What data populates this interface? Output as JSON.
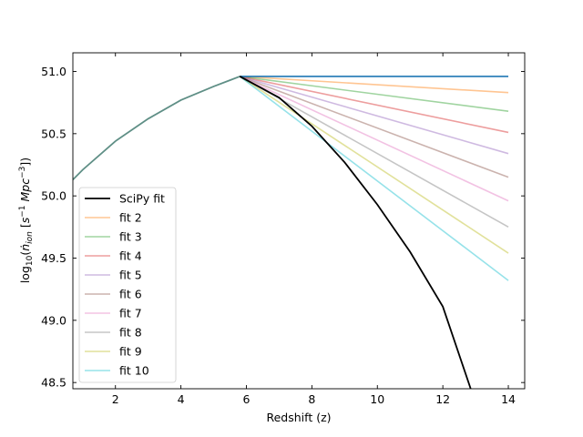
{
  "chart_data": {
    "type": "line",
    "title": "",
    "xlabel": "Redshift (z)",
    "ylabel": {
      "prefix": "log",
      "sub": "10",
      "open": "(",
      "ndot": "ṅ",
      "ion": "ion",
      "bracket_open": " [",
      "s": "s",
      "sexp": "−1",
      "mpc": " Mpc",
      "mexp": "−3",
      "close": "])"
    },
    "xlim": [
      0.7,
      14.5
    ],
    "ylim": [
      48.45,
      51.15
    ],
    "xticks": [
      2,
      4,
      6,
      8,
      10,
      12,
      14
    ],
    "xtick_labels": [
      "2",
      "4",
      "6",
      "8",
      "10",
      "12",
      "14"
    ],
    "yticks": [
      48.5,
      49.0,
      49.5,
      50.0,
      50.5,
      51.0
    ],
    "ytick_labels": [
      "48.5",
      "49.0",
      "49.5",
      "50.0",
      "50.5",
      "51.0"
    ],
    "grid": false,
    "legend_position": "lower-left",
    "shared_rising_curve": {
      "color": "#5f8f86",
      "x": [
        0.7,
        1,
        2,
        3,
        4,
        5,
        5.8
      ],
      "y": [
        50.13,
        50.21,
        50.44,
        50.62,
        50.77,
        50.88,
        50.96
      ]
    },
    "series": [
      {
        "name": "SciPy fit",
        "color": "#000000",
        "opacity": 1.0,
        "x": [
          5.8,
          7,
          8,
          9,
          10,
          11,
          12,
          12.85
        ],
        "y": [
          50.96,
          50.79,
          50.56,
          50.27,
          49.93,
          49.55,
          49.11,
          48.45
        ]
      },
      {
        "name": "fit 2",
        "color": "#ff7f0e",
        "opacity": 0.45,
        "x": [
          5.8,
          14
        ],
        "y": [
          50.96,
          50.83
        ]
      },
      {
        "name": "fit 3",
        "color": "#2ca02c",
        "opacity": 0.45,
        "x": [
          5.8,
          14
        ],
        "y": [
          50.96,
          50.68
        ]
      },
      {
        "name": "fit 4",
        "color": "#d62728",
        "opacity": 0.45,
        "x": [
          5.8,
          14
        ],
        "y": [
          50.96,
          50.51
        ]
      },
      {
        "name": "fit 5",
        "color": "#9467bd",
        "opacity": 0.45,
        "x": [
          5.8,
          14
        ],
        "y": [
          50.96,
          50.34
        ]
      },
      {
        "name": "fit 6",
        "color": "#8c564b",
        "opacity": 0.45,
        "x": [
          5.8,
          14
        ],
        "y": [
          50.96,
          50.15
        ]
      },
      {
        "name": "fit 7",
        "color": "#e377c2",
        "opacity": 0.45,
        "x": [
          5.8,
          14
        ],
        "y": [
          50.96,
          49.96
        ]
      },
      {
        "name": "fit 8",
        "color": "#7f7f7f",
        "opacity": 0.45,
        "x": [
          5.8,
          14
        ],
        "y": [
          50.96,
          49.75
        ]
      },
      {
        "name": "fit 9",
        "color": "#bcbd22",
        "opacity": 0.45,
        "x": [
          5.8,
          14
        ],
        "y": [
          50.96,
          49.54
        ]
      },
      {
        "name": "fit 10",
        "color": "#17becf",
        "opacity": 0.45,
        "x": [
          5.8,
          14
        ],
        "y": [
          50.96,
          49.32
        ]
      }
    ],
    "flat_line": {
      "color": "#1f77b4",
      "x": [
        5.8,
        14
      ],
      "y": [
        50.96,
        50.96
      ]
    }
  }
}
